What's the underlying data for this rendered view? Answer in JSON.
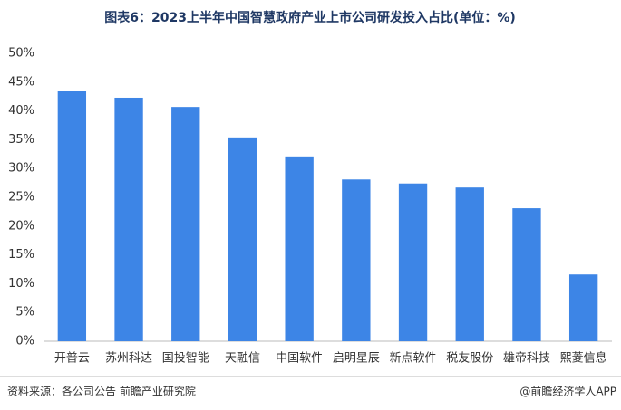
{
  "chart_data": {
    "type": "bar",
    "title": "图表6：2023上半年中国智慧政府产业上市公司研发投入占比(单位：%)",
    "categories": [
      "开普云",
      "苏州科达",
      "国投智能",
      "天融信",
      "中国软件",
      "启明星辰",
      "新点软件",
      "税友股份",
      "雄帝科技",
      "熙菱信息"
    ],
    "values": [
      43.4,
      42.3,
      40.7,
      35.4,
      32.1,
      28.1,
      27.4,
      26.7,
      23.1,
      11.6
    ],
    "color": "#3d85e6",
    "ylim": [
      0,
      50
    ],
    "yticks": [
      {
        "value": 0,
        "label": "0%"
      },
      {
        "value": 5,
        "label": "5%"
      },
      {
        "value": 10,
        "label": "10%"
      },
      {
        "value": 15,
        "label": "15%"
      },
      {
        "value": 20,
        "label": "20%"
      },
      {
        "value": 25,
        "label": "25%"
      },
      {
        "value": 30,
        "label": "30%"
      },
      {
        "value": 35,
        "label": "35%"
      },
      {
        "value": 40,
        "label": "40%"
      },
      {
        "value": 45,
        "label": "45%"
      },
      {
        "value": 50,
        "label": "50%"
      }
    ],
    "grid": false,
    "source": "资料来源：各公司公告 前瞻产业研究院",
    "credit": "@前瞻经济学人APP"
  }
}
